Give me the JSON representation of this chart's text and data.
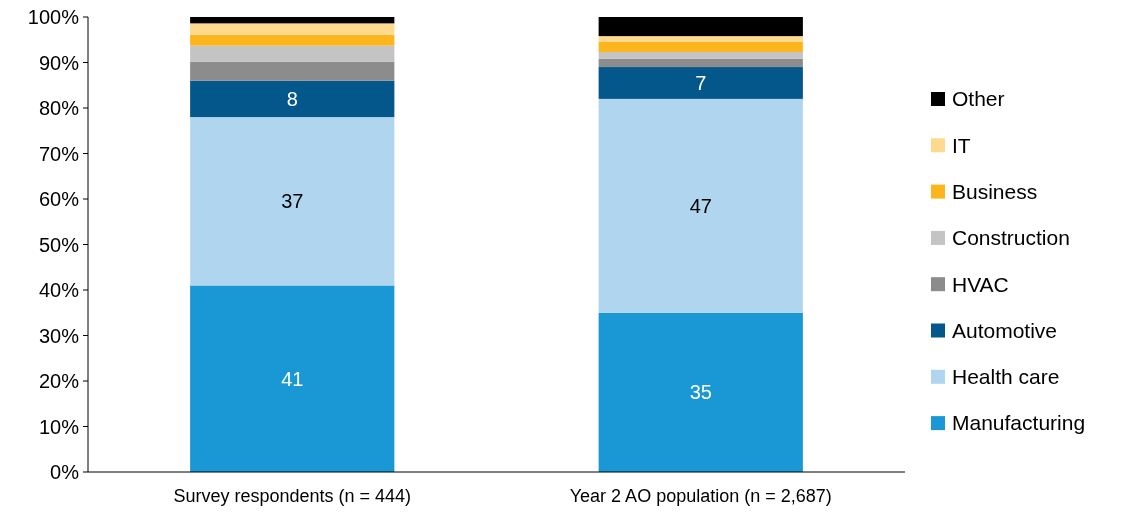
{
  "chart_data": {
    "type": "bar",
    "stacked": true,
    "categories": [
      "Survey respondents (n = 444)",
      "Year 2 AO population (n = 2,687)"
    ],
    "ylim": [
      0,
      100
    ],
    "yticks": [
      {
        "value": 0,
        "label": "0%"
      },
      {
        "value": 10,
        "label": "10%"
      },
      {
        "value": 20,
        "label": "20%"
      },
      {
        "value": 30,
        "label": "30%"
      },
      {
        "value": 40,
        "label": "40%"
      },
      {
        "value": 50,
        "label": "50%"
      },
      {
        "value": 60,
        "label": "60%"
      },
      {
        "value": 70,
        "label": "70%"
      },
      {
        "value": 80,
        "label": "80%"
      },
      {
        "value": 90,
        "label": "90%"
      },
      {
        "value": 100,
        "label": "100%"
      }
    ],
    "legend": "right",
    "grid": false,
    "series": [
      {
        "name": "Manufacturing",
        "color": "#1a98d5",
        "values": [
          41,
          35
        ],
        "value_labels": [
          "41",
          "35"
        ]
      },
      {
        "name": "Health care",
        "color": "#b0d5ee",
        "values": [
          37,
          47
        ],
        "value_labels": [
          "37",
          "47"
        ]
      },
      {
        "name": "Automotive",
        "color": "#03578a",
        "values": [
          8,
          7
        ],
        "value_labels": [
          "8",
          "7"
        ]
      },
      {
        "name": "HVAC",
        "color": "#8c8c8c",
        "values": [
          4.2,
          1.8
        ]
      },
      {
        "name": "Construction",
        "color": "#c4c4c4",
        "values": [
          3.5,
          1.5
        ]
      },
      {
        "name": "Business",
        "color": "#fcb51c",
        "values": [
          2.4,
          2.3
        ]
      },
      {
        "name": "IT",
        "color": "#fed98e",
        "values": [
          2.5,
          1.2
        ]
      },
      {
        "name": "Other",
        "color": "#000000",
        "values": [
          1.4,
          4.2
        ]
      }
    ]
  }
}
